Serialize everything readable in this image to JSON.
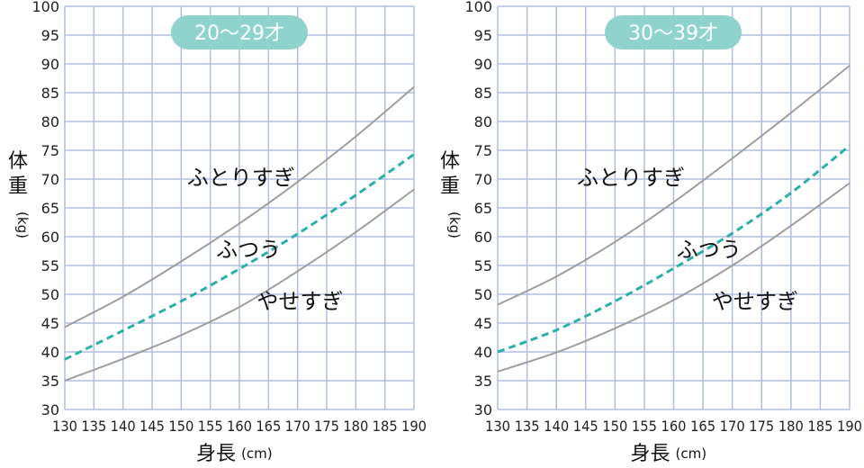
{
  "chart_data": [
    {
      "type": "line",
      "age_badge": "20〜29才",
      "xlabel": "身長",
      "xunit": "(cm)",
      "ylabel": "体重",
      "yunit": "(kg)",
      "xlim": [
        130,
        190
      ],
      "ylim": [
        30,
        100
      ],
      "xticks": [
        "130",
        "135",
        "140",
        "145",
        "150",
        "155",
        "160",
        "165",
        "170",
        "175",
        "180",
        "185",
        "190"
      ],
      "yticks": [
        "30",
        "35",
        "40",
        "45",
        "50",
        "55",
        "60",
        "65",
        "70",
        "75",
        "80",
        "85",
        "90",
        "95",
        "100"
      ],
      "grid": true,
      "colors": {
        "grid": "#b0bde0",
        "line": "#9e9e9e",
        "dashed": "#2ab0a8",
        "badge": "#8fd3cc"
      },
      "series": [
        {
          "name": "ふとりすぎ",
          "style": "solid",
          "x": [
            130,
            140,
            150,
            160,
            170,
            180,
            190
          ],
          "y": [
            44.3,
            49.6,
            55.7,
            62.3,
            69.5,
            77.4,
            86.0
          ]
        },
        {
          "name": "ふつう",
          "style": "dashed",
          "x": [
            130,
            140,
            150,
            160,
            170,
            180,
            190
          ],
          "y": [
            38.7,
            43.7,
            48.8,
            54.4,
            60.5,
            67.2,
            74.3
          ]
        },
        {
          "name": "やせすぎ",
          "style": "solid",
          "x": [
            130,
            140,
            150,
            160,
            170,
            180,
            190
          ],
          "y": [
            35.0,
            38.8,
            42.9,
            47.8,
            54.0,
            60.8,
            68.2
          ]
        }
      ],
      "labels": [
        {
          "series": "ふとりすぎ",
          "x": 151,
          "y": 69
        },
        {
          "series": "ふつう",
          "x": 156,
          "y": 56.5
        },
        {
          "series": "やせすぎ",
          "x": 163,
          "y": 47.5
        }
      ]
    },
    {
      "type": "line",
      "age_badge": "30〜39才",
      "xlabel": "身長",
      "xunit": "(cm)",
      "ylabel": "体重",
      "yunit": "(kg)",
      "xlim": [
        130,
        190
      ],
      "ylim": [
        30,
        100
      ],
      "xticks": [
        "130",
        "135",
        "140",
        "145",
        "150",
        "155",
        "160",
        "165",
        "170",
        "175",
        "180",
        "185",
        "190"
      ],
      "yticks": [
        "30",
        "35",
        "40",
        "45",
        "50",
        "55",
        "60",
        "65",
        "70",
        "75",
        "80",
        "85",
        "90",
        "95",
        "100"
      ],
      "grid": true,
      "colors": {
        "grid": "#b0bde0",
        "line": "#9e9e9e",
        "dashed": "#2ab0a8",
        "badge": "#8fd3cc"
      },
      "series": [
        {
          "name": "ふとりすぎ",
          "style": "solid",
          "x": [
            130,
            140,
            150,
            160,
            170,
            180,
            190
          ],
          "y": [
            48.2,
            53.1,
            59.1,
            66.0,
            73.6,
            81.5,
            89.7
          ]
        },
        {
          "name": "ふつう",
          "style": "dashed",
          "x": [
            130,
            140,
            150,
            160,
            170,
            180,
            190
          ],
          "y": [
            40.0,
            43.8,
            48.8,
            54.5,
            60.6,
            67.6,
            75.8
          ]
        },
        {
          "name": "やせすぎ",
          "style": "solid",
          "x": [
            130,
            140,
            150,
            160,
            170,
            180,
            190
          ],
          "y": [
            36.6,
            39.9,
            44.1,
            49.0,
            55.0,
            61.9,
            69.3
          ]
        }
      ],
      "labels": [
        {
          "series": "ふとりすぎ",
          "x": 143.5,
          "y": 69
        },
        {
          "series": "ふつう",
          "x": 160.5,
          "y": 56.5
        },
        {
          "series": "やせすぎ",
          "x": 166.5,
          "y": 47.5
        }
      ]
    }
  ]
}
